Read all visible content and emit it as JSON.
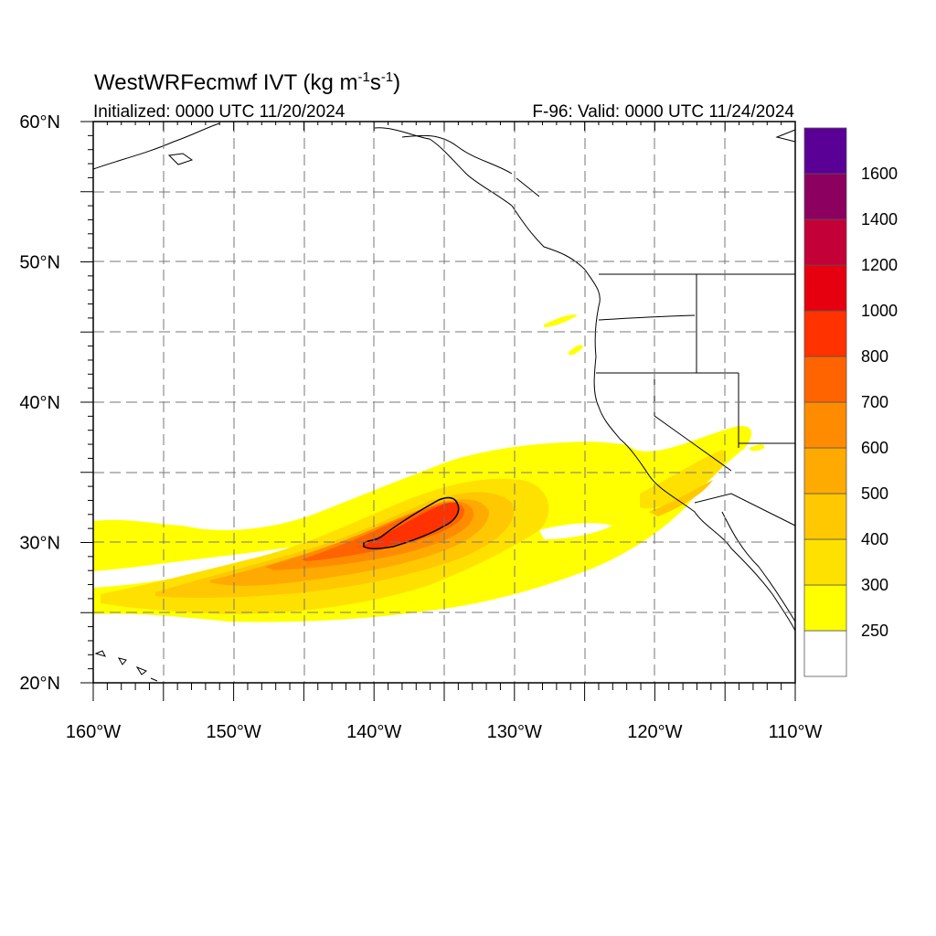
{
  "header": {
    "title_main": "WestWRFecmwf IVT (kg m",
    "title_sup1": "-1",
    "title_mid": "s",
    "title_sup2": "-1",
    "title_end": ")",
    "initialized": "Initialized: 0000 UTC 11/20/2024",
    "valid": "F-96: Valid: 0000 UTC 11/24/2024"
  },
  "axes": {
    "lon_ticks": [
      {
        "value": -160,
        "label": "160°W"
      },
      {
        "value": -150,
        "label": "150°W"
      },
      {
        "value": -140,
        "label": "140°W"
      },
      {
        "value": -130,
        "label": "130°W"
      },
      {
        "value": -120,
        "label": "120°W"
      },
      {
        "value": -110,
        "label": "110°W"
      }
    ],
    "lat_ticks": [
      {
        "value": 20,
        "label": "20°N"
      },
      {
        "value": 30,
        "label": "30°N"
      },
      {
        "value": 40,
        "label": "40°N"
      },
      {
        "value": 50,
        "label": "50°N"
      },
      {
        "value": 60,
        "label": "60°N"
      }
    ],
    "lon_range": [
      -160,
      -110
    ],
    "lat_range": [
      20,
      60
    ],
    "grid": "dashed, every 5 degrees"
  },
  "colorbar": {
    "placement": "right",
    "levels": [
      {
        "label": "",
        "color": "#ffffff"
      },
      {
        "label": "250",
        "color": "#ffff00"
      },
      {
        "label": "300",
        "color": "#ffe100"
      },
      {
        "label": "400",
        "color": "#ffc800"
      },
      {
        "label": "500",
        "color": "#ffaa00"
      },
      {
        "label": "600",
        "color": "#ff8c00"
      },
      {
        "label": "700",
        "color": "#ff6400"
      },
      {
        "label": "800",
        "color": "#ff3200"
      },
      {
        "label": "1000",
        "color": "#e6000f"
      },
      {
        "label": "1200",
        "color": "#c30037"
      },
      {
        "label": "1400",
        "color": "#8c005f"
      },
      {
        "label": "1600",
        "color": "#5a0096"
      }
    ]
  }
}
